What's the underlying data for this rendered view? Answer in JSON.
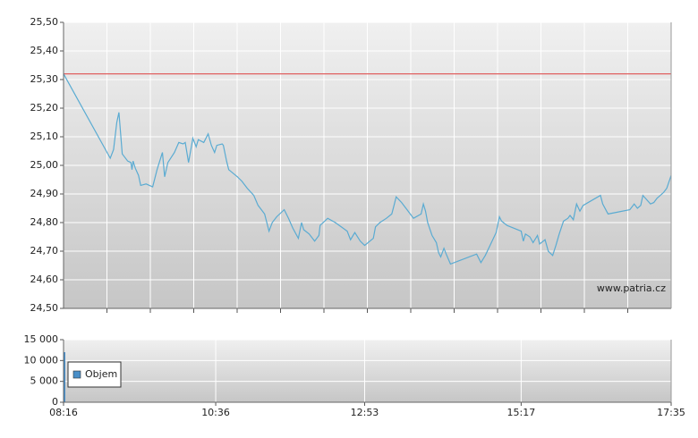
{
  "chart_data": [
    {
      "type": "line",
      "color": "#5aabd2",
      "reference_line": {
        "value": 25.32,
        "color": "#e06060"
      },
      "watermark": "www.patria.cz",
      "xlim": [
        "08:16",
        "17:35"
      ],
      "ylim": [
        24.5,
        25.5
      ],
      "yticks": [
        {
          "value": 24.5,
          "label": "24,50"
        },
        {
          "value": 24.6,
          "label": "24,60"
        },
        {
          "value": 24.7,
          "label": "24,70"
        },
        {
          "value": 24.8,
          "label": "24,80"
        },
        {
          "value": 24.9,
          "label": "24,90"
        },
        {
          "value": 25.0,
          "label": "25,00"
        },
        {
          "value": 25.1,
          "label": "25,10"
        },
        {
          "value": 25.2,
          "label": "25,20"
        },
        {
          "value": 25.3,
          "label": "25,30"
        },
        {
          "value": 25.4,
          "label": "25,40"
        },
        {
          "value": 25.5,
          "label": "25,50"
        }
      ],
      "grid": true,
      "x": [
        "08:16",
        "08:59",
        "09:02",
        "09:05",
        "09:07",
        "09:10",
        "09:15",
        "09:18",
        "09:19",
        "09:20",
        "09:22",
        "09:25",
        "09:27",
        "09:32",
        "09:35",
        "09:38",
        "09:42",
        "09:47",
        "09:49",
        "09:52",
        "09:58",
        "10:02",
        "10:06",
        "10:08",
        "10:11",
        "10:15",
        "10:18",
        "10:20",
        "10:25",
        "10:29",
        "10:32",
        "10:35",
        "10:37",
        "10:42",
        "10:43",
        "10:46",
        "10:48",
        "10:56",
        "11:00",
        "11:05",
        "11:11",
        "11:15",
        "11:18",
        "11:21",
        "11:25",
        "11:28",
        "11:32",
        "11:39",
        "11:43",
        "11:47",
        "11:52",
        "11:55",
        "11:57",
        "12:02",
        "12:07",
        "12:11",
        "12:12",
        "12:19",
        "12:26",
        "12:37",
        "12:40",
        "12:44",
        "12:49",
        "12:53",
        "13:01",
        "13:03",
        "13:07",
        "13:13",
        "13:18",
        "13:20",
        "13:22",
        "13:27",
        "13:33",
        "13:38",
        "13:45",
        "13:47",
        "13:49",
        "13:51",
        "13:55",
        "13:59",
        "14:01",
        "14:03",
        "14:06",
        "14:08",
        "14:12",
        "14:36",
        "14:40",
        "14:44",
        "14:54",
        "14:57",
        "14:59",
        "15:04",
        "15:17",
        "15:19",
        "15:21",
        "15:25",
        "15:28",
        "15:32",
        "15:34",
        "15:39",
        "15:42",
        "15:46",
        "15:49",
        "15:52",
        "15:56",
        "16:00",
        "16:02",
        "16:05",
        "16:08",
        "16:11",
        "16:14",
        "16:30",
        "16:32",
        "16:37",
        "16:57",
        "17:01",
        "17:04",
        "17:07",
        "17:09",
        "17:16",
        "17:19",
        "17:22",
        "17:28",
        "17:31",
        "17:35"
      ],
      "values": [
        25.32,
        25.025,
        25.055,
        25.15,
        25.185,
        25.04,
        25.015,
        25.01,
        24.985,
        25.015,
        24.99,
        24.965,
        24.93,
        24.935,
        24.93,
        24.925,
        24.985,
        25.045,
        24.96,
        25.01,
        25.045,
        25.08,
        25.075,
        25.08,
        25.01,
        25.095,
        25.065,
        25.09,
        25.08,
        25.11,
        25.07,
        25.045,
        25.07,
        25.075,
        25.07,
        25.015,
        24.985,
        24.96,
        24.945,
        24.92,
        24.895,
        24.86,
        24.845,
        24.83,
        24.77,
        24.8,
        24.82,
        24.845,
        24.815,
        24.78,
        24.745,
        24.8,
        24.775,
        24.76,
        24.735,
        24.755,
        24.79,
        24.815,
        24.8,
        24.77,
        24.74,
        24.765,
        24.735,
        24.72,
        24.745,
        24.785,
        24.8,
        24.815,
        24.83,
        24.86,
        24.89,
        24.87,
        24.84,
        24.815,
        24.83,
        24.865,
        24.84,
        24.8,
        24.755,
        24.73,
        24.695,
        24.68,
        24.71,
        24.69,
        24.655,
        24.69,
        24.66,
        24.685,
        24.765,
        24.82,
        24.805,
        24.79,
        24.77,
        24.735,
        24.76,
        24.75,
        24.73,
        24.755,
        24.725,
        24.74,
        24.7,
        24.685,
        24.72,
        24.76,
        24.805,
        24.815,
        24.825,
        24.81,
        24.865,
        24.84,
        24.86,
        24.895,
        24.865,
        24.83,
        24.845,
        24.865,
        24.85,
        24.86,
        24.895,
        24.865,
        24.87,
        24.885,
        24.905,
        24.92,
        24.965
      ]
    },
    {
      "type": "bar",
      "xlim": [
        "08:16",
        "17:35"
      ],
      "xticks": [
        "08:16",
        "10:36",
        "12:53",
        "15:17",
        "17:35"
      ],
      "ylim": [
        0,
        15000
      ],
      "yticks": [
        0,
        {
          "value": 5000,
          "label": "5 000"
        },
        {
          "value": 10000,
          "label": "10 000"
        },
        {
          "value": 15000,
          "label": "15 000"
        }
      ],
      "grid": true,
      "x": [
        "08:16"
      ],
      "series": [
        {
          "name": "Objem",
          "color": "#4a8fc8",
          "values": [
            12000
          ]
        }
      ]
    }
  ]
}
